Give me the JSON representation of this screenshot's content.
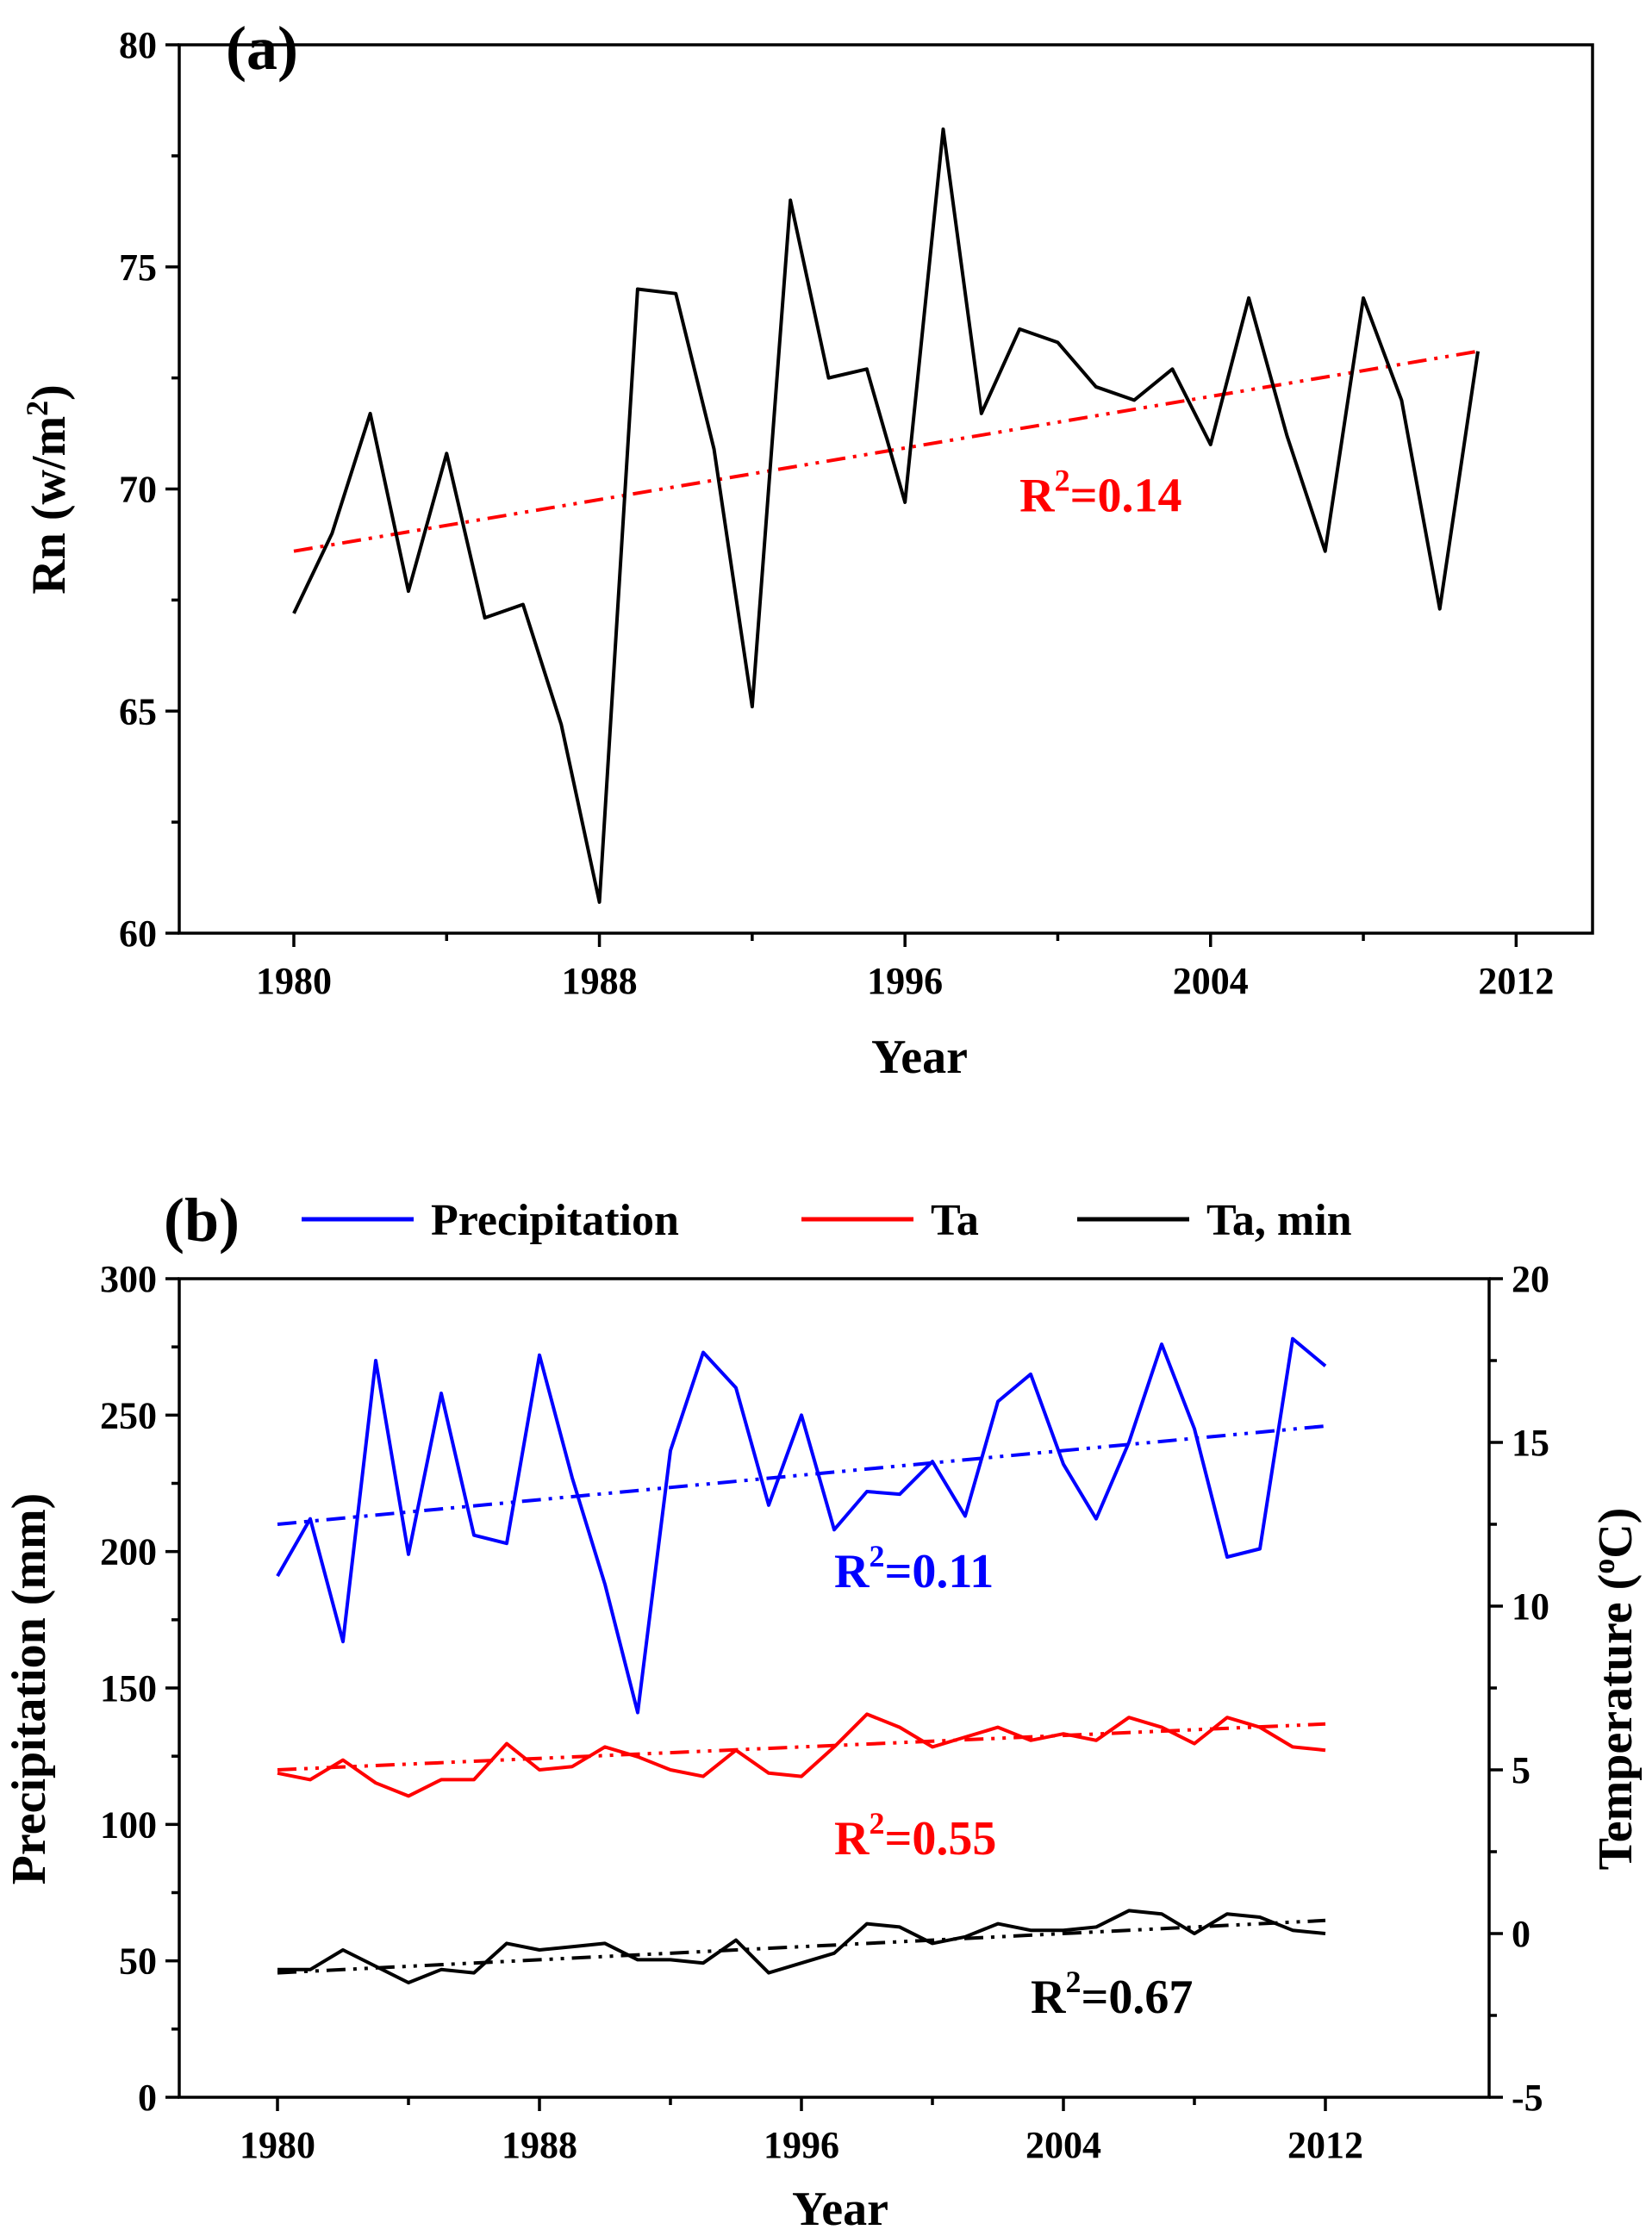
{
  "chart_data": [
    {
      "type": "line",
      "panel_label": "(a)",
      "xlabel": "Year",
      "ylabel_main": "Rn (w/m",
      "ylabel_sup": "2",
      "ylabel_close": ")",
      "xlim": [
        1977,
        2014
      ],
      "ylim": [
        60,
        80
      ],
      "xticks": [
        1980,
        1988,
        1996,
        2004,
        2012
      ],
      "yticks": [
        60,
        65,
        70,
        75,
        80
      ],
      "series": [
        {
          "name": "Rn",
          "color": "#000000",
          "x": [
            1980,
            1981,
            1982,
            1983,
            1984,
            1985,
            1986,
            1987,
            1988,
            1989,
            1990,
            1991,
            1992,
            1993,
            1994,
            1995,
            1996,
            1997,
            1998,
            1999,
            2000,
            2001,
            2002,
            2003,
            2004,
            2005,
            2006,
            2007,
            2008,
            2009,
            2010,
            2011
          ],
          "values": [
            67.2,
            69.0,
            71.7,
            67.7,
            70.8,
            67.1,
            67.4,
            64.7,
            60.7,
            74.5,
            74.4,
            70.9,
            65.1,
            76.5,
            72.5,
            72.7,
            69.7,
            78.1,
            71.7,
            73.6,
            73.3,
            72.3,
            72.0,
            72.7,
            71.0,
            74.3,
            71.2,
            68.6,
            74.3,
            72.0,
            67.3,
            73.1
          ]
        }
      ],
      "trend": {
        "name": "Rn trend",
        "color": "#ff0000",
        "x": [
          1980,
          2011
        ],
        "values": [
          68.6,
          73.1
        ]
      },
      "annotation": {
        "main": "R",
        "sup": "2",
        "value": "=0.14",
        "color": "#ff0000",
        "x": 1999,
        "y": 69.5
      }
    },
    {
      "type": "line",
      "panel_label": "(b)",
      "xlabel": "Year",
      "ylabel_left": "Precipitation (mm)",
      "ylabel_right_main": "Temperature (",
      "ylabel_right_sup": "o",
      "ylabel_right_close": "C)",
      "xlim": [
        1977,
        2017
      ],
      "ylim_left": [
        0,
        300
      ],
      "ylim_right": [
        -5,
        20
      ],
      "xticks": [
        1980,
        1988,
        1996,
        2004,
        2012
      ],
      "yticks_left": [
        0,
        50,
        100,
        150,
        200,
        250,
        300
      ],
      "yticks_right": [
        -5,
        0,
        5,
        10,
        15,
        20
      ],
      "legend": [
        {
          "label": "Precipitation",
          "color": "#0000ff"
        },
        {
          "label": "Ta",
          "color": "#ff0000"
        },
        {
          "label": "Ta, min",
          "color": "#000000"
        }
      ],
      "x": [
        1980,
        1981,
        1982,
        1983,
        1984,
        1985,
        1986,
        1987,
        1988,
        1989,
        1990,
        1991,
        1992,
        1993,
        1994,
        1995,
        1996,
        1997,
        1998,
        1999,
        2000,
        2001,
        2002,
        2003,
        2004,
        2005,
        2006,
        2007,
        2008,
        2009,
        2010,
        2011,
        2012
      ],
      "series": [
        {
          "name": "Precipitation",
          "axis": "left",
          "color": "#0000ff",
          "values": [
            191,
            212,
            167,
            270,
            199,
            258,
            206,
            203,
            272,
            227,
            188,
            141,
            237,
            273,
            260,
            217,
            250,
            208,
            222,
            221,
            233,
            213,
            255,
            265,
            232,
            212,
            240,
            276,
            245,
            198,
            201,
            278,
            268
          ]
        },
        {
          "name": "Ta",
          "axis": "right",
          "color": "#ff0000",
          "values": [
            4.9,
            4.7,
            5.3,
            4.6,
            4.2,
            4.7,
            4.7,
            5.8,
            5.0,
            5.1,
            5.7,
            5.4,
            5.0,
            4.8,
            5.6,
            4.9,
            4.8,
            5.7,
            6.7,
            6.3,
            5.7,
            6.0,
            6.3,
            5.9,
            6.1,
            5.9,
            6.6,
            6.3,
            5.8,
            6.6,
            6.3,
            5.7,
            5.6
          ]
        },
        {
          "name": "Ta, min",
          "axis": "right",
          "color": "#000000",
          "values": [
            -1.1,
            -1.1,
            -0.5,
            -1.0,
            -1.5,
            -1.1,
            -1.2,
            -0.3,
            -0.5,
            -0.4,
            -0.3,
            -0.8,
            -0.8,
            -0.9,
            -0.2,
            -1.2,
            -0.9,
            -0.6,
            0.3,
            0.2,
            -0.3,
            -0.1,
            0.3,
            0.1,
            0.1,
            0.2,
            0.7,
            0.6,
            0.0,
            0.6,
            0.5,
            0.1,
            0.0
          ]
        }
      ],
      "trends": [
        {
          "name": "Precipitation trend",
          "axis": "left",
          "color": "#0000ff",
          "x": [
            1980,
            2012
          ],
          "values": [
            210,
            246
          ]
        },
        {
          "name": "Ta trend",
          "axis": "right",
          "color": "#ff0000",
          "x": [
            1980,
            2012
          ],
          "values": [
            5.0,
            6.4
          ]
        },
        {
          "name": "Ta, min trend",
          "axis": "right",
          "color": "#000000",
          "x": [
            1980,
            2012
          ],
          "values": [
            -1.2,
            0.4
          ]
        }
      ],
      "annotations": [
        {
          "main": "R",
          "sup": "2",
          "value": "=0.11",
          "color": "#0000ff",
          "axis": "left",
          "x": 1997,
          "y": 187
        },
        {
          "main": "R",
          "sup": "2",
          "value": "=0.55",
          "color": "#ff0000",
          "axis": "left",
          "x": 1997,
          "y": 89
        },
        {
          "main": "R",
          "sup": "2",
          "value": "=0.67",
          "color": "#000000",
          "axis": "left",
          "x": 2003,
          "y": 31
        }
      ]
    }
  ]
}
